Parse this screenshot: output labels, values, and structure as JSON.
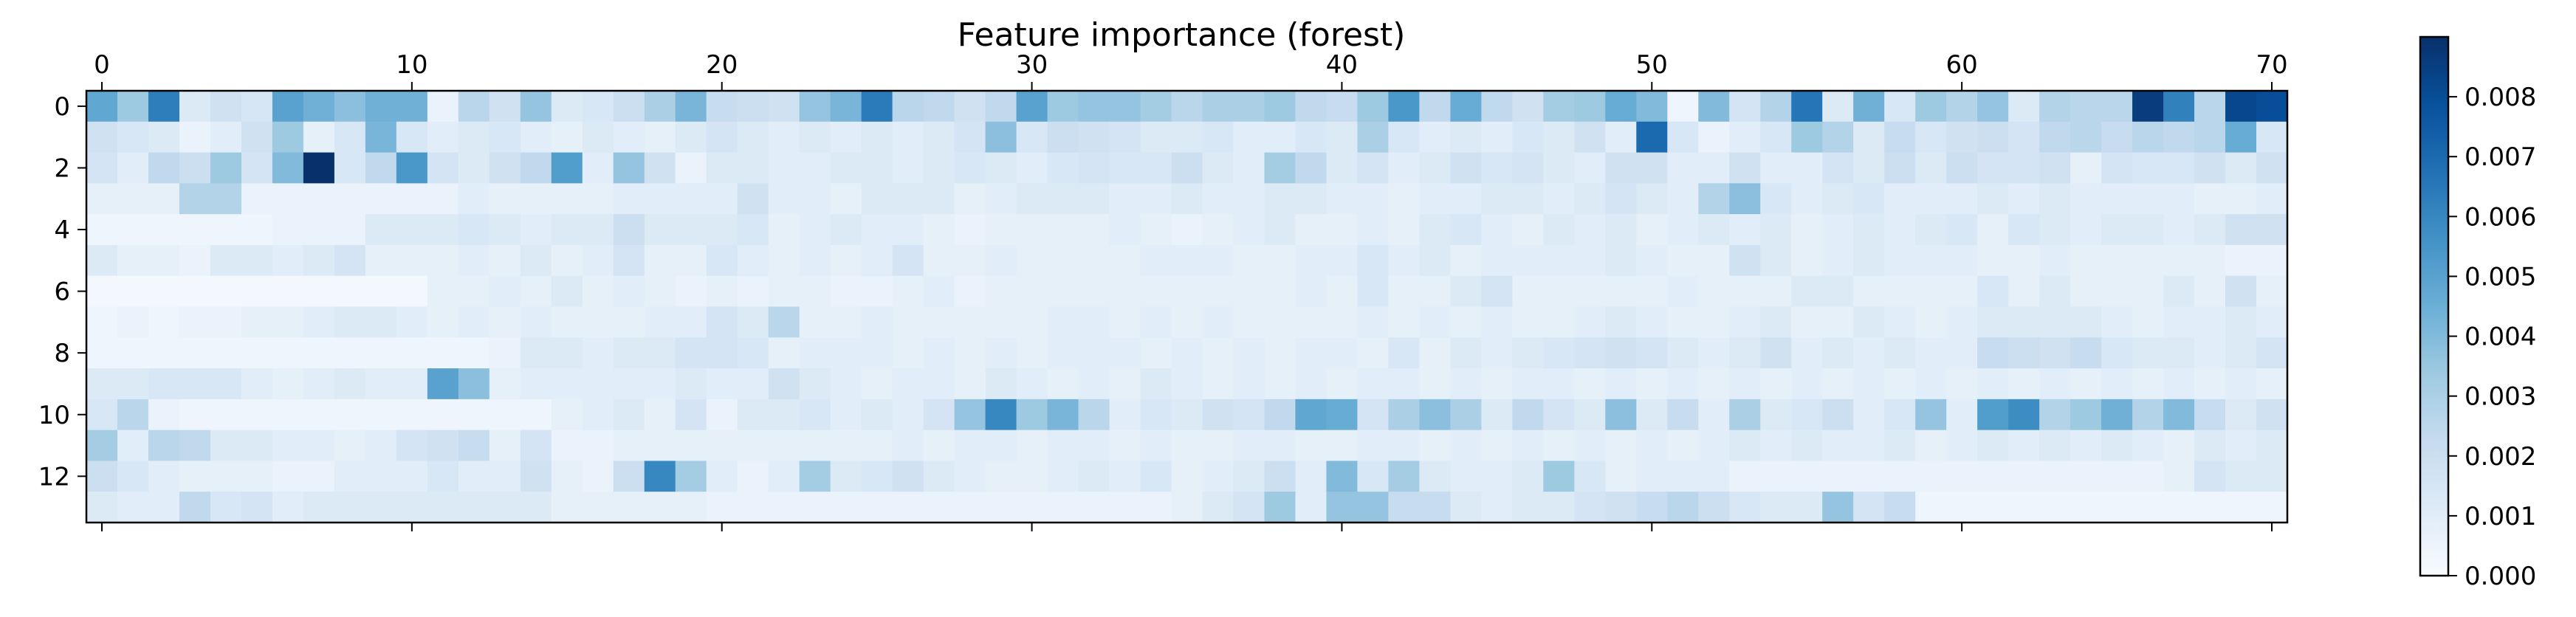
{
  "chart_data": {
    "type": "heatmap",
    "title": "Feature importance (forest)",
    "rows": 14,
    "cols": 71,
    "x_ticks": [
      0,
      10,
      20,
      30,
      40,
      50,
      60,
      70
    ],
    "y_ticks": [
      0,
      2,
      4,
      6,
      8,
      10,
      12
    ],
    "colorbar": {
      "colormap": "Blues",
      "vmin": 0.0,
      "vmax": 0.009,
      "ticks": [
        "0.000",
        "0.001",
        "0.002",
        "0.003",
        "0.004",
        "0.005",
        "0.006",
        "0.007",
        "0.008"
      ]
    },
    "values": [
      [
        0.0048,
        0.0034,
        0.0063,
        0.0012,
        0.0018,
        0.0015,
        0.005,
        0.0044,
        0.0038,
        0.0044,
        0.0044,
        0.0006,
        0.0026,
        0.0018,
        0.0036,
        0.0012,
        0.0014,
        0.002,
        0.003,
        0.0042,
        0.0022,
        0.002,
        0.0018,
        0.0036,
        0.0042,
        0.0064,
        0.0026,
        0.0024,
        0.0018,
        0.0024,
        0.005,
        0.0034,
        0.0036,
        0.0036,
        0.0032,
        0.0026,
        0.003,
        0.003,
        0.0034,
        0.0024,
        0.0022,
        0.0034,
        0.0054,
        0.0024,
        0.0046,
        0.0024,
        0.0018,
        0.0032,
        0.0034,
        0.0046,
        0.004,
        0.0004,
        0.004,
        0.0016,
        0.0028,
        0.0066,
        0.0012,
        0.0044,
        0.0014,
        0.0034,
        0.0028,
        0.0036,
        0.0012,
        0.0028,
        0.0026,
        0.0026,
        0.0086,
        0.0062,
        0.0026,
        0.0082,
        0.008
      ],
      [
        0.0018,
        0.0014,
        0.0012,
        0.0006,
        0.001,
        0.0018,
        0.0034,
        0.0008,
        0.0014,
        0.0042,
        0.0014,
        0.001,
        0.0012,
        0.0014,
        0.001,
        0.0008,
        0.0012,
        0.001,
        0.0008,
        0.0012,
        0.0016,
        0.0012,
        0.001,
        0.0012,
        0.001,
        0.0012,
        0.001,
        0.0012,
        0.0016,
        0.0038,
        0.0014,
        0.002,
        0.0018,
        0.0016,
        0.0012,
        0.0012,
        0.0014,
        0.001,
        0.001,
        0.0014,
        0.0012,
        0.003,
        0.0014,
        0.001,
        0.0012,
        0.001,
        0.0014,
        0.0012,
        0.0018,
        0.001,
        0.007,
        0.0014,
        0.0006,
        0.001,
        0.0014,
        0.0034,
        0.0028,
        0.0012,
        0.0022,
        0.0014,
        0.0018,
        0.002,
        0.0016,
        0.0024,
        0.0026,
        0.0022,
        0.0026,
        0.0024,
        0.0026,
        0.0046,
        0.0014
      ],
      [
        0.0016,
        0.001,
        0.0024,
        0.002,
        0.0034,
        0.0016,
        0.004,
        0.009,
        0.0014,
        0.0024,
        0.0054,
        0.0016,
        0.0012,
        0.0018,
        0.0024,
        0.0052,
        0.001,
        0.0036,
        0.0018,
        0.0006,
        0.0012,
        0.0012,
        0.001,
        0.001,
        0.0012,
        0.0012,
        0.001,
        0.0012,
        0.0014,
        0.0012,
        0.001,
        0.0014,
        0.0016,
        0.0014,
        0.0014,
        0.002,
        0.0012,
        0.001,
        0.0032,
        0.0024,
        0.0012,
        0.0016,
        0.001,
        0.0012,
        0.0018,
        0.0014,
        0.0016,
        0.0012,
        0.001,
        0.0018,
        0.0018,
        0.001,
        0.001,
        0.0018,
        0.001,
        0.001,
        0.0016,
        0.0012,
        0.002,
        0.0012,
        0.002,
        0.0016,
        0.0016,
        0.0018,
        0.0008,
        0.0016,
        0.0014,
        0.0014,
        0.0018,
        0.0012,
        0.0018
      ],
      [
        0.0008,
        0.0008,
        0.0008,
        0.0028,
        0.0028,
        0.0006,
        0.0006,
        0.0006,
        0.0006,
        0.0006,
        0.0006,
        0.0006,
        0.001,
        0.0008,
        0.0008,
        0.0008,
        0.0008,
        0.001,
        0.001,
        0.001,
        0.001,
        0.0018,
        0.001,
        0.001,
        0.0008,
        0.0012,
        0.0012,
        0.0012,
        0.0008,
        0.001,
        0.0012,
        0.0012,
        0.0012,
        0.001,
        0.001,
        0.0012,
        0.001,
        0.001,
        0.0012,
        0.0012,
        0.001,
        0.001,
        0.0008,
        0.001,
        0.001,
        0.0012,
        0.0012,
        0.001,
        0.0012,
        0.0016,
        0.0012,
        0.001,
        0.0028,
        0.0038,
        0.0014,
        0.001,
        0.0012,
        0.0014,
        0.001,
        0.001,
        0.001,
        0.0012,
        0.001,
        0.0012,
        0.001,
        0.001,
        0.001,
        0.001,
        0.0008,
        0.0008,
        0.001
      ],
      [
        0.0004,
        0.0004,
        0.0004,
        0.0004,
        0.0004,
        0.0004,
        0.0006,
        0.0006,
        0.0006,
        0.0012,
        0.0012,
        0.0012,
        0.0014,
        0.0012,
        0.001,
        0.0012,
        0.0012,
        0.002,
        0.0012,
        0.0012,
        0.0012,
        0.0014,
        0.0008,
        0.001,
        0.0012,
        0.001,
        0.001,
        0.0008,
        0.0006,
        0.0008,
        0.0008,
        0.0008,
        0.0008,
        0.001,
        0.0008,
        0.0006,
        0.0008,
        0.001,
        0.0012,
        0.0008,
        0.0008,
        0.001,
        0.0008,
        0.0012,
        0.0014,
        0.001,
        0.0008,
        0.0012,
        0.001,
        0.0012,
        0.0008,
        0.001,
        0.0012,
        0.001,
        0.0012,
        0.0008,
        0.001,
        0.0012,
        0.001,
        0.0012,
        0.0014,
        0.0008,
        0.0014,
        0.0012,
        0.001,
        0.0012,
        0.0012,
        0.001,
        0.0012,
        0.0018,
        0.0018
      ],
      [
        0.0012,
        0.0008,
        0.0008,
        0.0006,
        0.0012,
        0.0012,
        0.001,
        0.0012,
        0.0016,
        0.0008,
        0.0008,
        0.0008,
        0.001,
        0.0008,
        0.0012,
        0.0008,
        0.001,
        0.0016,
        0.0008,
        0.0008,
        0.0014,
        0.001,
        0.0008,
        0.001,
        0.0008,
        0.001,
        0.0016,
        0.0008,
        0.0008,
        0.001,
        0.0008,
        0.0008,
        0.0008,
        0.0008,
        0.001,
        0.001,
        0.001,
        0.0008,
        0.0008,
        0.001,
        0.001,
        0.0014,
        0.001,
        0.0012,
        0.0008,
        0.001,
        0.001,
        0.001,
        0.001,
        0.0012,
        0.001,
        0.0008,
        0.0008,
        0.0018,
        0.0012,
        0.0008,
        0.001,
        0.0012,
        0.001,
        0.001,
        0.001,
        0.0008,
        0.0008,
        0.001,
        0.0008,
        0.0008,
        0.0008,
        0.0008,
        0.0008,
        0.0006,
        0.0006
      ],
      [
        0.0002,
        0.0002,
        0.0002,
        0.0002,
        0.0002,
        0.0002,
        0.0002,
        0.0002,
        0.0002,
        0.0002,
        0.0002,
        0.0008,
        0.0008,
        0.001,
        0.0008,
        0.0012,
        0.0008,
        0.001,
        0.0008,
        0.0006,
        0.0008,
        0.0006,
        0.0008,
        0.0008,
        0.0006,
        0.0006,
        0.0008,
        0.001,
        0.0006,
        0.0008,
        0.0008,
        0.0008,
        0.0008,
        0.0008,
        0.0008,
        0.0008,
        0.0008,
        0.0008,
        0.0008,
        0.001,
        0.0008,
        0.0014,
        0.0008,
        0.0008,
        0.0012,
        0.0016,
        0.0008,
        0.0008,
        0.0008,
        0.0008,
        0.0008,
        0.001,
        0.0008,
        0.0008,
        0.0008,
        0.0012,
        0.0012,
        0.0008,
        0.0008,
        0.0008,
        0.0008,
        0.0014,
        0.0008,
        0.0012,
        0.0008,
        0.0008,
        0.0008,
        0.0012,
        0.0008,
        0.0018,
        0.0008
      ],
      [
        0.0004,
        0.0006,
        0.0004,
        0.0006,
        0.0006,
        0.0008,
        0.0008,
        0.001,
        0.0012,
        0.0012,
        0.001,
        0.0008,
        0.001,
        0.0008,
        0.001,
        0.0008,
        0.0008,
        0.0008,
        0.001,
        0.001,
        0.0016,
        0.0012,
        0.0026,
        0.0008,
        0.0008,
        0.001,
        0.0008,
        0.0008,
        0.0008,
        0.0008,
        0.0008,
        0.001,
        0.001,
        0.0008,
        0.001,
        0.0008,
        0.001,
        0.0008,
        0.0008,
        0.0008,
        0.0008,
        0.001,
        0.0008,
        0.001,
        0.0008,
        0.001,
        0.0008,
        0.0008,
        0.001,
        0.0012,
        0.001,
        0.0008,
        0.0008,
        0.001,
        0.0012,
        0.0008,
        0.0008,
        0.0012,
        0.001,
        0.0008,
        0.001,
        0.0012,
        0.0012,
        0.0012,
        0.0012,
        0.001,
        0.0008,
        0.001,
        0.001,
        0.0012,
        0.001
      ],
      [
        0.0004,
        0.0004,
        0.0004,
        0.0004,
        0.0004,
        0.0004,
        0.0004,
        0.0004,
        0.0004,
        0.0004,
        0.0004,
        0.0004,
        0.0004,
        0.0006,
        0.0012,
        0.0012,
        0.001,
        0.0012,
        0.0012,
        0.0016,
        0.0016,
        0.0014,
        0.0008,
        0.001,
        0.001,
        0.001,
        0.0008,
        0.001,
        0.0008,
        0.001,
        0.0008,
        0.001,
        0.001,
        0.001,
        0.0008,
        0.001,
        0.0008,
        0.001,
        0.0008,
        0.001,
        0.001,
        0.0008,
        0.0014,
        0.0008,
        0.0012,
        0.001,
        0.0012,
        0.0014,
        0.0016,
        0.0018,
        0.0016,
        0.0012,
        0.001,
        0.0012,
        0.0018,
        0.001,
        0.0012,
        0.001,
        0.0012,
        0.001,
        0.001,
        0.0022,
        0.002,
        0.0018,
        0.0022,
        0.0014,
        0.0012,
        0.0012,
        0.001,
        0.0012,
        0.0016
      ],
      [
        0.0012,
        0.0012,
        0.0014,
        0.0014,
        0.0014,
        0.001,
        0.0008,
        0.001,
        0.0012,
        0.001,
        0.001,
        0.005,
        0.0038,
        0.0008,
        0.001,
        0.001,
        0.001,
        0.001,
        0.001,
        0.0012,
        0.001,
        0.001,
        0.0018,
        0.0012,
        0.001,
        0.0008,
        0.001,
        0.001,
        0.0008,
        0.0012,
        0.001,
        0.0008,
        0.001,
        0.0008,
        0.0012,
        0.001,
        0.0008,
        0.001,
        0.0008,
        0.001,
        0.0008,
        0.001,
        0.001,
        0.0008,
        0.001,
        0.0008,
        0.001,
        0.001,
        0.0008,
        0.001,
        0.0008,
        0.001,
        0.0008,
        0.001,
        0.0008,
        0.001,
        0.0008,
        0.001,
        0.0008,
        0.001,
        0.0008,
        0.001,
        0.0008,
        0.001,
        0.0008,
        0.001,
        0.0008,
        0.001,
        0.0008,
        0.001,
        0.0008
      ],
      [
        0.0014,
        0.0026,
        0.0006,
        0.0004,
        0.0004,
        0.0004,
        0.0004,
        0.0004,
        0.0004,
        0.0004,
        0.0004,
        0.0004,
        0.0004,
        0.0004,
        0.0004,
        0.0008,
        0.001,
        0.0012,
        0.0008,
        0.0016,
        0.0006,
        0.0012,
        0.0012,
        0.0014,
        0.001,
        0.0012,
        0.001,
        0.0016,
        0.0036,
        0.006,
        0.0034,
        0.0042,
        0.0026,
        0.001,
        0.0014,
        0.0012,
        0.0018,
        0.0016,
        0.0024,
        0.0048,
        0.0046,
        0.0016,
        0.003,
        0.0038,
        0.003,
        0.0012,
        0.0024,
        0.0016,
        0.0012,
        0.0038,
        0.0012,
        0.0022,
        0.001,
        0.003,
        0.0012,
        0.0014,
        0.002,
        0.001,
        0.0014,
        0.0036,
        0.001,
        0.0052,
        0.0058,
        0.0028,
        0.0034,
        0.0044,
        0.0028,
        0.004,
        0.0022,
        0.0012,
        0.0018
      ],
      [
        0.0032,
        0.001,
        0.0026,
        0.0024,
        0.0012,
        0.0012,
        0.001,
        0.001,
        0.0008,
        0.001,
        0.0016,
        0.0018,
        0.0022,
        0.0008,
        0.0016,
        0.0006,
        0.0006,
        0.0008,
        0.0008,
        0.0008,
        0.0008,
        0.0008,
        0.0008,
        0.0008,
        0.0008,
        0.0008,
        0.001,
        0.0008,
        0.001,
        0.001,
        0.0008,
        0.001,
        0.001,
        0.0008,
        0.001,
        0.0008,
        0.0008,
        0.001,
        0.001,
        0.0008,
        0.0008,
        0.001,
        0.001,
        0.0008,
        0.001,
        0.0008,
        0.001,
        0.0008,
        0.001,
        0.0008,
        0.001,
        0.0008,
        0.001,
        0.0012,
        0.001,
        0.0012,
        0.001,
        0.001,
        0.0012,
        0.0008,
        0.001,
        0.0012,
        0.001,
        0.0012,
        0.001,
        0.0012,
        0.001,
        0.0008,
        0.0012,
        0.001,
        0.0012
      ],
      [
        0.002,
        0.0014,
        0.001,
        0.0008,
        0.0008,
        0.0008,
        0.0006,
        0.0006,
        0.001,
        0.001,
        0.001,
        0.0014,
        0.001,
        0.001,
        0.0018,
        0.0008,
        0.0006,
        0.002,
        0.006,
        0.0032,
        0.001,
        0.0006,
        0.001,
        0.0032,
        0.0012,
        0.0014,
        0.0018,
        0.0012,
        0.001,
        0.0008,
        0.0008,
        0.001,
        0.0012,
        0.001,
        0.0014,
        0.0008,
        0.001,
        0.0012,
        0.002,
        0.001,
        0.004,
        0.0014,
        0.0032,
        0.0012,
        0.001,
        0.001,
        0.0012,
        0.0034,
        0.0014,
        0.0008,
        0.001,
        0.001,
        0.001,
        0.0006,
        0.0006,
        0.0006,
        0.0006,
        0.0006,
        0.0006,
        0.0006,
        0.0006,
        0.0006,
        0.0006,
        0.0006,
        0.0006,
        0.0006,
        0.0006,
        0.0008,
        0.0016,
        0.0012,
        0.0012
      ],
      [
        0.0012,
        0.001,
        0.001,
        0.0024,
        0.0014,
        0.0016,
        0.001,
        0.0012,
        0.0012,
        0.0012,
        0.0012,
        0.0012,
        0.0012,
        0.0012,
        0.0012,
        0.0008,
        0.0008,
        0.0008,
        0.0008,
        0.0008,
        0.0006,
        0.0006,
        0.0006,
        0.0006,
        0.0006,
        0.0006,
        0.0006,
        0.0006,
        0.0006,
        0.0006,
        0.0006,
        0.0006,
        0.0006,
        0.0006,
        0.0006,
        0.0008,
        0.0012,
        0.0016,
        0.0034,
        0.001,
        0.0036,
        0.0036,
        0.0022,
        0.0022,
        0.0012,
        0.001,
        0.0012,
        0.0012,
        0.0016,
        0.0018,
        0.0022,
        0.0026,
        0.002,
        0.0014,
        0.0012,
        0.0012,
        0.0036,
        0.0016,
        0.0022,
        0.0004,
        0.0004,
        0.0004,
        0.0004,
        0.0004,
        0.0004,
        0.0004,
        0.0004,
        0.0004,
        0.0004,
        0.0004,
        0.0004
      ]
    ]
  }
}
